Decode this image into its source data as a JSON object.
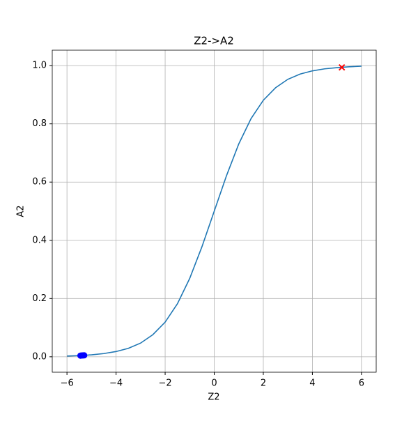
{
  "chart_data": {
    "type": "line",
    "title": "Z2->A2",
    "x_label": "Z2",
    "y_label": "A2",
    "grid": true,
    "xlim": [
      -6.6,
      6.6
    ],
    "ylim": [
      -0.053,
      1.053
    ],
    "xticks": [
      {
        "value": -6,
        "label": "−6"
      },
      {
        "value": -4,
        "label": "−4"
      },
      {
        "value": -2,
        "label": "−2"
      },
      0,
      2,
      4,
      6
    ],
    "yticks": [
      {
        "value": 0,
        "label": "0.0"
      },
      {
        "value": 0.2,
        "label": "0.2"
      },
      {
        "value": 0.4,
        "label": "0.4"
      },
      {
        "value": 0.6,
        "label": "0.6"
      },
      {
        "value": 0.8,
        "label": "0.8"
      },
      {
        "value": 1,
        "label": "1.0"
      }
    ],
    "series": [
      {
        "color": "#1f77b4",
        "marker": "none",
        "x": [
          -6,
          -5.5,
          -5,
          -4.5,
          -4,
          -3.5,
          -3,
          -2.5,
          -2,
          -1.5,
          -1,
          -0.5,
          0,
          0.5,
          1,
          1.5,
          2,
          2.5,
          3,
          3.5,
          4,
          4.5,
          5,
          5.5,
          6
        ],
        "values": [
          0.0025,
          0.0041,
          0.0067,
          0.011,
          0.018,
          0.029,
          0.047,
          0.076,
          0.119,
          0.182,
          0.269,
          0.378,
          0.5,
          0.622,
          0.731,
          0.818,
          0.881,
          0.924,
          0.953,
          0.971,
          0.982,
          0.989,
          0.993,
          0.996,
          0.998
        ]
      },
      {
        "color": "#0000ff",
        "marker": "o",
        "x": [
          -5.45,
          -5.4,
          -5.35,
          -5.3
        ],
        "values": [
          0.004,
          0.0045,
          0.0047,
          0.005
        ]
      },
      {
        "color": "#ff0000",
        "marker": "x",
        "x": [
          5.2
        ],
        "values": [
          0.994
        ]
      }
    ]
  }
}
